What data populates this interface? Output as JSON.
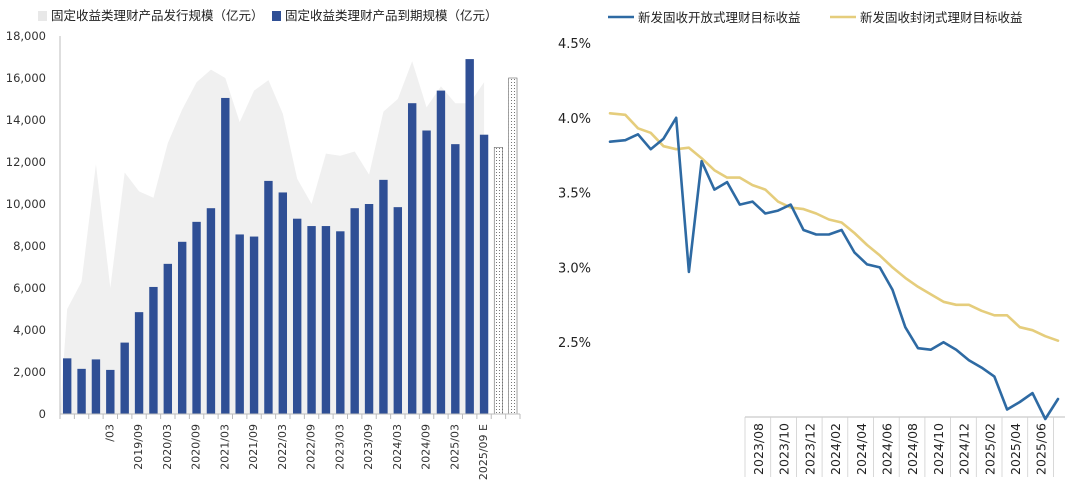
{
  "chart_data": [
    {
      "type": "bar",
      "legend": [
        {
          "name": "固定收益类理财产品发行规模（亿元）",
          "color": "#f0f0f0",
          "kind": "area"
        },
        {
          "name": "固定收益类理财产品到期规模（亿元）",
          "color": "#2f4f95",
          "kind": "bar"
        }
      ],
      "ylim": [
        0,
        18000
      ],
      "yticks": [
        "0",
        "2,000",
        "4,000",
        "6,000",
        "8,000",
        "10,000",
        "12,000",
        "14,000",
        "16,000",
        "18,000"
      ],
      "ytick_values": [
        0,
        2000,
        4000,
        6000,
        8000,
        10000,
        12000,
        14000,
        16000,
        18000
      ],
      "xtick_labels": [
        {
          "index": 3,
          "label": "/03"
        },
        {
          "index": 5,
          "label": "2019/09"
        },
        {
          "index": 7,
          "label": "2020/03"
        },
        {
          "index": 9,
          "label": "2020/09"
        },
        {
          "index": 11,
          "label": "2021/03"
        },
        {
          "index": 13,
          "label": "2021/09"
        },
        {
          "index": 15,
          "label": "2022/03"
        },
        {
          "index": 17,
          "label": "2022/09"
        },
        {
          "index": 19,
          "label": "2023/03"
        },
        {
          "index": 21,
          "label": "2023/09"
        },
        {
          "index": 23,
          "label": "2024/03"
        },
        {
          "index": 25,
          "label": "2024/09"
        },
        {
          "index": 27,
          "label": "2025/03"
        },
        {
          "index": 29,
          "label": "2025/09 E"
        }
      ],
      "series": [
        {
          "name": "固定收益类理财产品发行规模（亿元）",
          "type": "area",
          "values": [
            5000,
            6300,
            11900,
            6000,
            11500,
            10600,
            10300,
            12900,
            14500,
            15800,
            16400,
            16000,
            13900,
            15400,
            15900,
            14300,
            11200,
            10000,
            12400,
            12300,
            12500,
            11400,
            14400,
            15000,
            16800,
            14600,
            15600,
            14800,
            14800,
            15800
          ]
        },
        {
          "name": "固定收益类理财产品到期规模（亿元）",
          "type": "bar",
          "values": [
            2650,
            2150,
            2600,
            2100,
            3400,
            4850,
            6050,
            7150,
            8200,
            9150,
            9800,
            15050,
            8550,
            8450,
            11100,
            10550,
            9300,
            8950,
            8950,
            8700,
            9800,
            10000,
            11150,
            9850,
            14800,
            13500,
            15400,
            12850,
            16900,
            13300
          ]
        },
        {
          "name": "",
          "type": "estimate-bar",
          "start_index": 30,
          "values": [
            12700,
            16000
          ]
        }
      ]
    },
    {
      "type": "line",
      "legend": [
        {
          "name": "新发固收开放式理财目标收益",
          "color": "#2e6aa3"
        },
        {
          "name": "新发固收封闭式理财目标收益",
          "color": "#e5cd7c"
        }
      ],
      "ylim": [
        2.0,
        4.5
      ],
      "yticks": [
        "2.5%",
        "3.0%",
        "3.5%",
        "4.0%",
        "4.5%"
      ],
      "ytick_values": [
        2.5,
        3.0,
        3.5,
        4.0,
        4.5
      ],
      "xtick_labels": [
        "2023/08",
        "2023/10",
        "2023/12",
        "2024/02",
        "2024/04",
        "2024/06",
        "2024/08",
        "2024/10",
        "2024/12",
        "2025/02",
        "2025/04",
        "2025/06"
      ],
      "series": [
        {
          "name": "新发固收开放式理财目标收益",
          "points": [
            [
              0,
              3.84
            ],
            [
              0.3,
              3.85
            ],
            [
              0.55,
              3.89
            ],
            [
              0.8,
              3.79
            ],
            [
              1.05,
              3.86
            ],
            [
              1.3,
              4.0
            ],
            [
              1.55,
              2.97
            ],
            [
              1.8,
              3.71
            ],
            [
              2.05,
              3.52
            ],
            [
              2.3,
              3.57
            ],
            [
              2.55,
              3.42
            ],
            [
              2.8,
              3.44
            ],
            [
              3.05,
              3.36
            ],
            [
              3.3,
              3.38
            ],
            [
              3.55,
              3.42
            ],
            [
              3.8,
              3.25
            ],
            [
              4.05,
              3.22
            ],
            [
              4.3,
              3.22
            ],
            [
              4.55,
              3.25
            ],
            [
              4.8,
              3.1
            ],
            [
              5.05,
              3.02
            ],
            [
              5.3,
              3.0
            ],
            [
              5.55,
              2.85
            ],
            [
              5.8,
              2.6
            ],
            [
              6.05,
              2.46
            ],
            [
              6.3,
              2.45
            ],
            [
              6.55,
              2.5
            ],
            [
              6.8,
              2.45
            ],
            [
              7.05,
              2.38
            ],
            [
              7.3,
              2.33
            ],
            [
              7.55,
              2.27
            ],
            [
              7.8,
              2.05
            ],
            [
              8.05,
              2.1
            ],
            [
              8.3,
              2.16
            ],
            [
              8.55,
              1.92
            ],
            [
              8.8,
              2.12
            ]
          ]
        },
        {
          "name": "新发固收封闭式理财目标收益",
          "points": [
            [
              0,
              4.03
            ],
            [
              0.3,
              4.02
            ],
            [
              0.55,
              3.93
            ],
            [
              0.8,
              3.9
            ],
            [
              1.05,
              3.81
            ],
            [
              1.3,
              3.79
            ],
            [
              1.55,
              3.8
            ],
            [
              1.8,
              3.73
            ],
            [
              2.05,
              3.65
            ],
            [
              2.3,
              3.6
            ],
            [
              2.55,
              3.6
            ],
            [
              2.8,
              3.55
            ],
            [
              3.05,
              3.52
            ],
            [
              3.3,
              3.44
            ],
            [
              3.55,
              3.4
            ],
            [
              3.8,
              3.39
            ],
            [
              4.05,
              3.36
            ],
            [
              4.3,
              3.32
            ],
            [
              4.55,
              3.3
            ],
            [
              4.8,
              3.23
            ],
            [
              5.05,
              3.15
            ],
            [
              5.3,
              3.08
            ],
            [
              5.55,
              3.0
            ],
            [
              5.8,
              2.93
            ],
            [
              6.05,
              2.87
            ],
            [
              6.3,
              2.82
            ],
            [
              6.55,
              2.77
            ],
            [
              6.8,
              2.75
            ],
            [
              7.05,
              2.75
            ],
            [
              7.3,
              2.71
            ],
            [
              7.55,
              2.68
            ],
            [
              7.8,
              2.68
            ],
            [
              8.05,
              2.6
            ],
            [
              8.3,
              2.58
            ],
            [
              8.55,
              2.54
            ],
            [
              8.8,
              2.51
            ]
          ]
        }
      ]
    }
  ]
}
